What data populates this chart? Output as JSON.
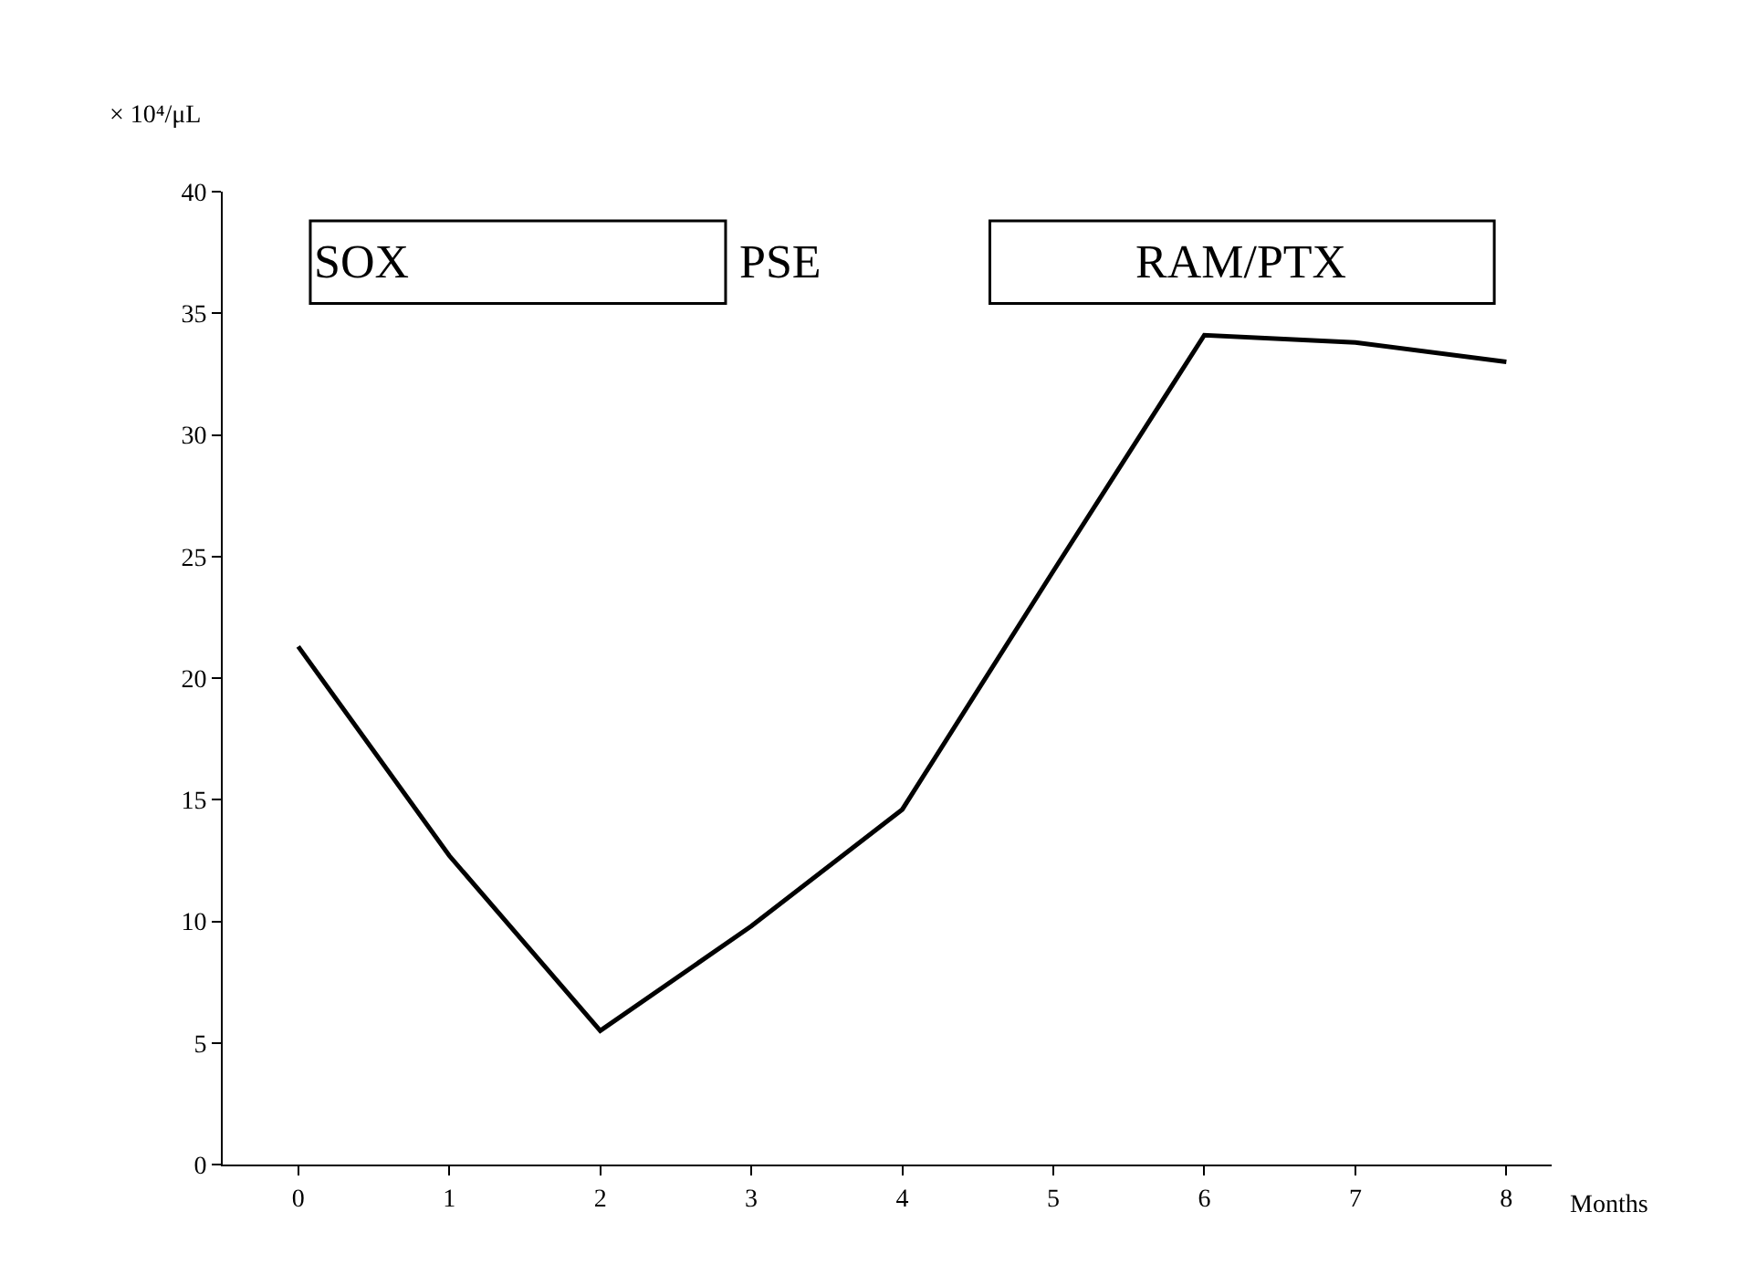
{
  "chart_data": {
    "type": "line",
    "ylabel": "× 10⁴/μL",
    "xlabel": "Months",
    "x": [
      0,
      1,
      2,
      3,
      4,
      5,
      6,
      7,
      8
    ],
    "series": [
      {
        "color": "#000000",
        "values": [
          21.3,
          12.7,
          5.5,
          9.8,
          14.6,
          24.4,
          34.1,
          33.8,
          33.0
        ]
      }
    ],
    "xlim": [
      -0.5,
      8.3
    ],
    "xticks": [
      0,
      1,
      2,
      3,
      4,
      5,
      6,
      7,
      8
    ],
    "ylim": [
      0,
      40
    ],
    "yticks": [
      0,
      5,
      10,
      15,
      20,
      25,
      30,
      35,
      40
    ],
    "marker": "none",
    "line_style": "solid",
    "bands": [
      {
        "axis": "x",
        "from": 0.08,
        "to": 2.83,
        "label": "SOX",
        "color": "#ffffff"
      },
      {
        "axis": "x",
        "from": 4.58,
        "to": 7.92,
        "label": "RAM/PTX",
        "color": "#ffffff"
      }
    ],
    "annotations": [
      "PSE"
    ]
  }
}
